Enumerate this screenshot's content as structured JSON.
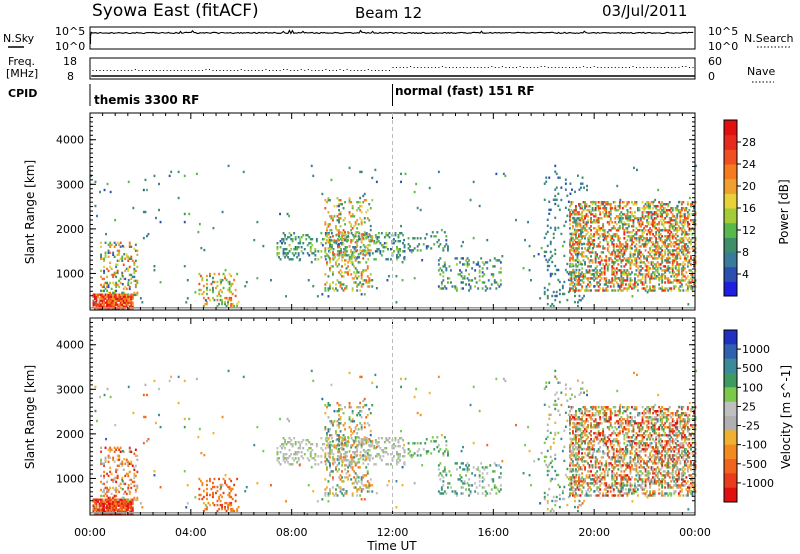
{
  "header": {
    "station": "Syowa East (fitACF)",
    "beam": "Beam 12",
    "date": "03/Jul/2011"
  },
  "status_panels": {
    "nsky_label": "N.Sky",
    "nsearch_label": "N.Search",
    "nsky_ticks": [
      "10^5",
      "10^0"
    ],
    "nsearch_ticks": [
      "10^5",
      "10^0"
    ],
    "freq_label_1": "Freq.",
    "freq_label_2": "[MHz]",
    "freq_ticks": [
      "18",
      "8"
    ],
    "nave_label": "Nave",
    "nave_ticks": [
      "60",
      "0"
    ],
    "cpid_label": "CPID",
    "cpid_segments": [
      {
        "start_hour": 0,
        "label": "themis 3300 RF"
      },
      {
        "start_hour": 12,
        "label": "normal (fast) 151 RF"
      }
    ]
  },
  "chart_data": [
    {
      "type": "heatmap",
      "panel": "power",
      "ylabel": "Slant Range [km]",
      "ylim": [
        180,
        4600
      ],
      "yticks": [
        "1000",
        "2000",
        "3000",
        "4000"
      ],
      "xlim": [
        0,
        24
      ],
      "colorbar": {
        "label": "Power [dB]",
        "ticks": [
          "4",
          "8",
          "12",
          "16",
          "20",
          "24",
          "28"
        ],
        "range": [
          0,
          30
        ],
        "colors": [
          "#1f1fe0",
          "#2a4fb0",
          "#3a7a9a",
          "#3e8e6a",
          "#58b84a",
          "#a4cc3a",
          "#e8d23a",
          "#f0a030",
          "#f57a20",
          "#f05020",
          "#e62a1c",
          "#e01010"
        ]
      }
    },
    {
      "type": "heatmap",
      "panel": "velocity",
      "ylabel": "Slant Range [km]",
      "ylim": [
        180,
        4600
      ],
      "yticks": [
        "1000",
        "2000",
        "3000",
        "4000"
      ],
      "xlim": [
        0,
        24
      ],
      "xlabel": "Time UT",
      "xticks": [
        "00:00",
        "04:00",
        "08:00",
        "12:00",
        "16:00",
        "20:00",
        "00:00"
      ],
      "colorbar": {
        "label": "Velocity [m s^-1]",
        "ticks": [
          "1000",
          "500",
          "100",
          "25",
          "-25",
          "-100",
          "-500",
          "-1000"
        ],
        "colors": [
          "#2030c0",
          "#3060b0",
          "#3a8a9a",
          "#3e9a60",
          "#7cc84a",
          "#bfbfbf",
          "#b0b0b0",
          "#f0b030",
          "#f28a20",
          "#f06420",
          "#e83c1c",
          "#e01010"
        ]
      }
    }
  ]
}
